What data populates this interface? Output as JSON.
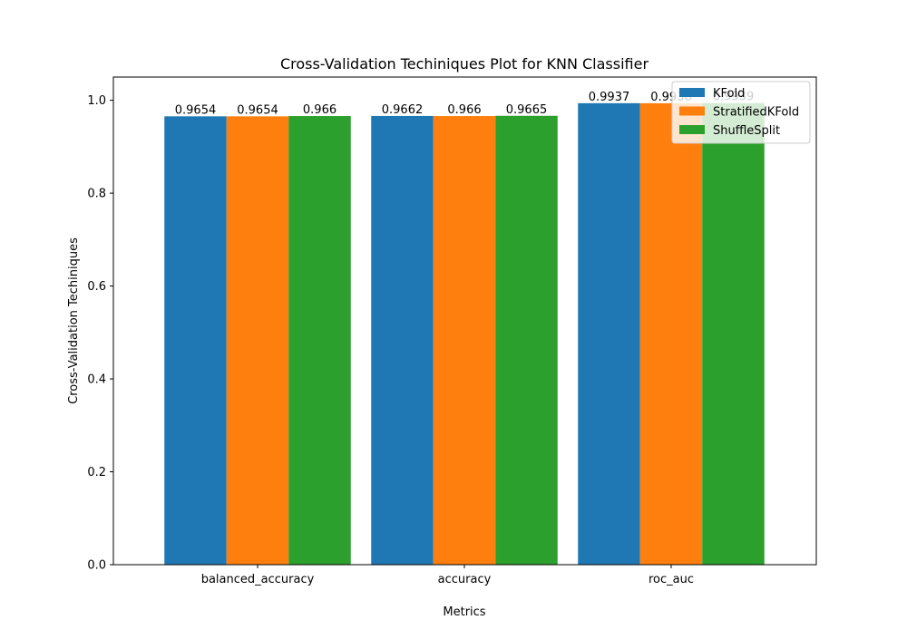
{
  "chart_data": {
    "type": "bar",
    "title": "Cross-Validation Techiniques Plot for KNN Classifier",
    "xlabel": "Metrics",
    "ylabel": "Cross-Validation Techiniques",
    "categories": [
      "balanced_accuracy",
      "accuracy",
      "roc_auc"
    ],
    "series": [
      {
        "name": "KFold",
        "values": [
          0.9654,
          0.9662,
          0.9937
        ],
        "labels": [
          "0.9654",
          "0.9662",
          "0.9937"
        ],
        "color": "#1f77b4"
      },
      {
        "name": "StratifiedKFold",
        "values": [
          0.9654,
          0.966,
          0.9936
        ],
        "labels": [
          "0.9654",
          "0.966",
          "0.9936"
        ],
        "color": "#ff7f0e"
      },
      {
        "name": "ShuffleSplit",
        "values": [
          0.966,
          0.9665,
          0.9939
        ],
        "labels": [
          "0.966",
          "0.9665",
          "0.9939"
        ],
        "color": "#2ca02c"
      }
    ],
    "ylim": [
      0,
      1.05
    ],
    "yticks": [
      "0.0",
      "0.2",
      "0.4",
      "0.6",
      "0.8",
      "1.0"
    ],
    "grid": false,
    "legend_position": "top-right"
  }
}
